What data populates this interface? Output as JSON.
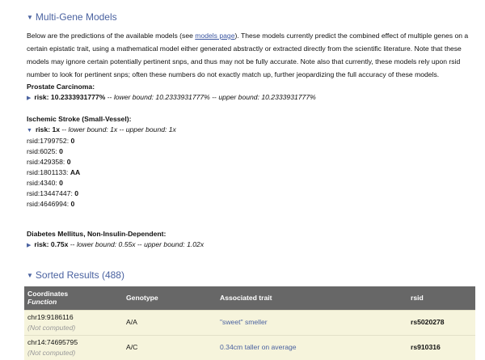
{
  "multi_gene": {
    "title": "Multi-Gene Models",
    "intro_before": "Below are the predictions of the available models (see ",
    "intro_link": "models page",
    "intro_after": "). These models currently predict the combined effect of multiple genes on a certain epistatic trait, using a mathematical model either generated abstractly or extracted directly from the scientific literature. Note that these models may ignore certain potentially pertinent snps, and thus may not be fully accurate. Note also that currently, these models rely upon rsid number to look for pertinent snps; often these numbers do not exactly match up, further jeopardizing the full accuracy of these models.",
    "models": [
      {
        "name": "Prostate Carcinoma:",
        "risk": "risk: 10.2333931777%",
        "sep1": " -- ",
        "lower": "lower bound: 10.2333931777%",
        "sep2": " -- ",
        "upper": "upper bound: 10.2333931777%",
        "expanded": false
      },
      {
        "name": "Ischemic Stroke (Small-Vessel):",
        "risk": "risk: 1x",
        "sep1": " -- ",
        "lower": "lower bound: 1x",
        "sep2": " -- ",
        "upper": "upper bound: 1x",
        "expanded": true,
        "snps": [
          {
            "rsid": "rsid:1799752: ",
            "val": "0"
          },
          {
            "rsid": "rsid:6025: ",
            "val": "0"
          },
          {
            "rsid": "rsid:429358: ",
            "val": "0"
          },
          {
            "rsid": "rsid:1801133: ",
            "val": "AA"
          },
          {
            "rsid": "rsid:4340: ",
            "val": "0"
          },
          {
            "rsid": "rsid:13447447: ",
            "val": "0"
          },
          {
            "rsid": "rsid:4646994: ",
            "val": "0"
          }
        ]
      },
      {
        "name": "Diabetes Mellitus, Non-Insulin-Dependent:",
        "risk": "risk: 0.75x",
        "sep1": " -- ",
        "lower": "lower bound: 0.55x",
        "sep2": " -- ",
        "upper": "upper bound: 1.02x",
        "expanded": false
      }
    ]
  },
  "sorted": {
    "title": "Sorted Results (488)",
    "headers": {
      "coord": "Coordinates",
      "func": "Function",
      "genotype": "Genotype",
      "trait": "Associated trait",
      "rsid": "rsid"
    },
    "rows": [
      {
        "coord": "chr19:9186116",
        "func": "(Not computed)",
        "genotype": "A/A",
        "trait": "\"sweet\" smeller",
        "rsid": "rs5020278"
      },
      {
        "coord": "chr14:74695795",
        "func": "(Not computed)",
        "genotype": "A/C",
        "trait": "0.34cm taller on average",
        "rsid": "rs910316"
      }
    ]
  },
  "colors": {
    "accent": "#4a62a0",
    "header_bg": "#676767",
    "row_bg": "#f6f4dc"
  }
}
